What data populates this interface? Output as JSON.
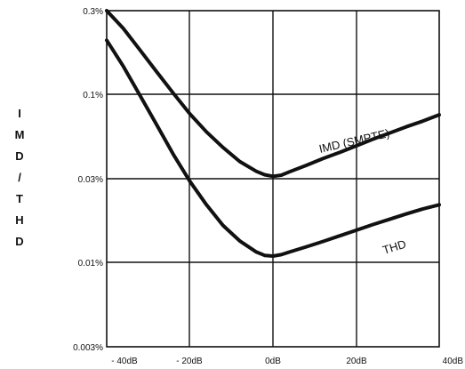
{
  "chart_data": {
    "type": "line",
    "ylabel": "IMD/THD",
    "xlabel": "",
    "x_ticks": [
      "- 40dB",
      "- 20dB",
      "0dB",
      "20dB",
      "40dB"
    ],
    "y_ticks": [
      "0.3%",
      "0.1%",
      "0.03%",
      "0.01%",
      "0.003%"
    ],
    "xlim": [
      -40,
      40
    ],
    "ylim": [
      0.003,
      0.3
    ],
    "y_scale": "log",
    "grid": true,
    "series": [
      {
        "name": "IMD (SMPTE)",
        "x": [
          -40,
          -36,
          -32,
          -28,
          -24,
          -20,
          -16,
          -12,
          -8,
          -4,
          -2,
          0,
          2,
          4,
          8,
          12,
          16,
          20,
          24,
          28,
          32,
          36,
          40
        ],
        "y": [
          0.31,
          0.235,
          0.175,
          0.13,
          0.097,
          0.073,
          0.057,
          0.046,
          0.038,
          0.0332,
          0.0317,
          0.031,
          0.0315,
          0.033,
          0.036,
          0.0395,
          0.043,
          0.047,
          0.0515,
          0.056,
          0.061,
          0.066,
          0.072
        ]
      },
      {
        "name": "THD",
        "x": [
          -40,
          -36,
          -32,
          -28,
          -24,
          -20,
          -16,
          -12,
          -8,
          -4,
          -2,
          0,
          2,
          4,
          8,
          12,
          16,
          20,
          24,
          28,
          32,
          36,
          40
        ],
        "y": [
          0.2,
          0.14,
          0.094,
          0.063,
          0.042,
          0.029,
          0.021,
          0.0158,
          0.0128,
          0.011,
          0.0105,
          0.0104,
          0.0106,
          0.011,
          0.0118,
          0.0127,
          0.0137,
          0.0148,
          0.016,
          0.0172,
          0.0185,
          0.0198,
          0.021
        ]
      }
    ]
  }
}
